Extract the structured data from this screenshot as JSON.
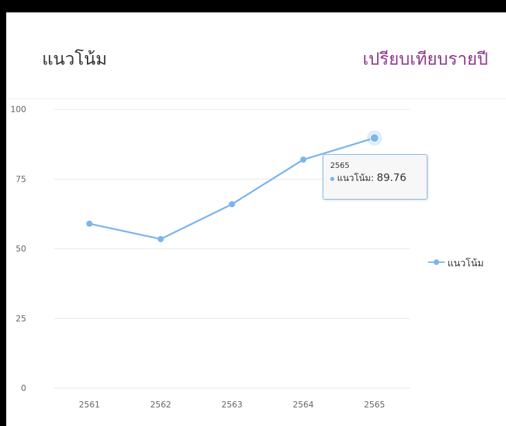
{
  "card": {
    "title": "แนวโน้ม",
    "link_label": "เปรียบเทียบรายปี"
  },
  "tooltip": {
    "header": "2565",
    "series_name": "แนวโน้ม",
    "value_text": "89.76"
  },
  "colors": {
    "series": "#7cb5ec",
    "link": "#8e3a8c",
    "grid": "#e6e6e6",
    "axis_text": "#666666"
  },
  "chart_data": {
    "type": "line",
    "categories": [
      "2561",
      "2562",
      "2563",
      "2564",
      "2565"
    ],
    "series": [
      {
        "name": "แนวโน้ม",
        "values": [
          59,
          53.5,
          66,
          82,
          89.76
        ]
      }
    ],
    "yticks": [
      "0",
      "25",
      "50",
      "75",
      "100"
    ],
    "ylim": [
      0,
      100
    ],
    "grid": true,
    "legend": "right",
    "highlighted_index": 4
  }
}
